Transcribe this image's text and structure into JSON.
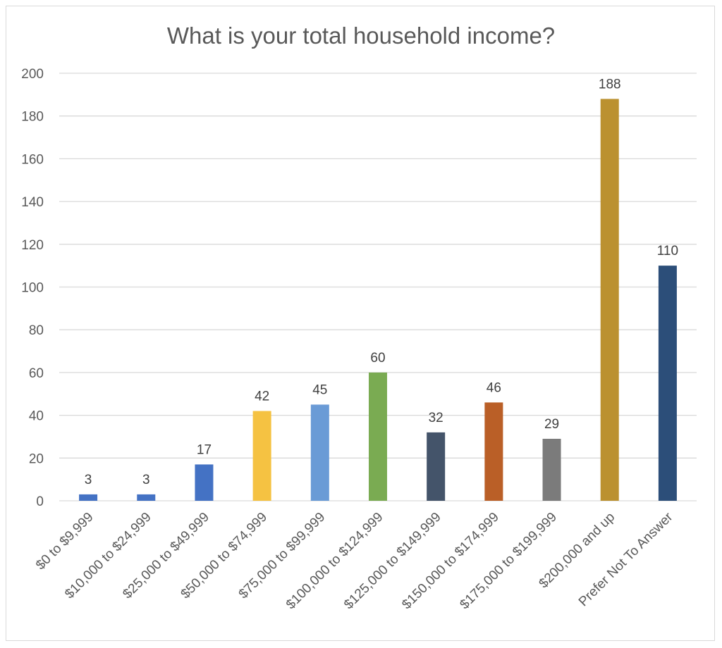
{
  "chart_data": {
    "type": "bar",
    "title": "What is your total household income?",
    "xlabel": "",
    "ylabel": "",
    "ylim": [
      0,
      200
    ],
    "ytick_step": 20,
    "grid": true,
    "categories": [
      "$0 to $9,999",
      "$10,000 to $24,999",
      "$25,000 to $49,999",
      "$50,000 to $74,999",
      "$75,000 to $99,999",
      "$100,000 to $124,999",
      "$125,000 to $149,999",
      "$150,000 to $174,999",
      "$175,000 to $199,999",
      "$200,000 and up",
      "Prefer Not To Answer"
    ],
    "values": [
      3,
      3,
      17,
      42,
      45,
      60,
      32,
      46,
      29,
      188,
      110
    ],
    "colors": [
      "#4472C4",
      "#4472C4",
      "#4472C4",
      "#F5C242",
      "#6A9BD6",
      "#7AAB52",
      "#44546A",
      "#BA5F27",
      "#7B7B7B",
      "#BB9130",
      "#2C4E79"
    ],
    "data_labels": true
  }
}
